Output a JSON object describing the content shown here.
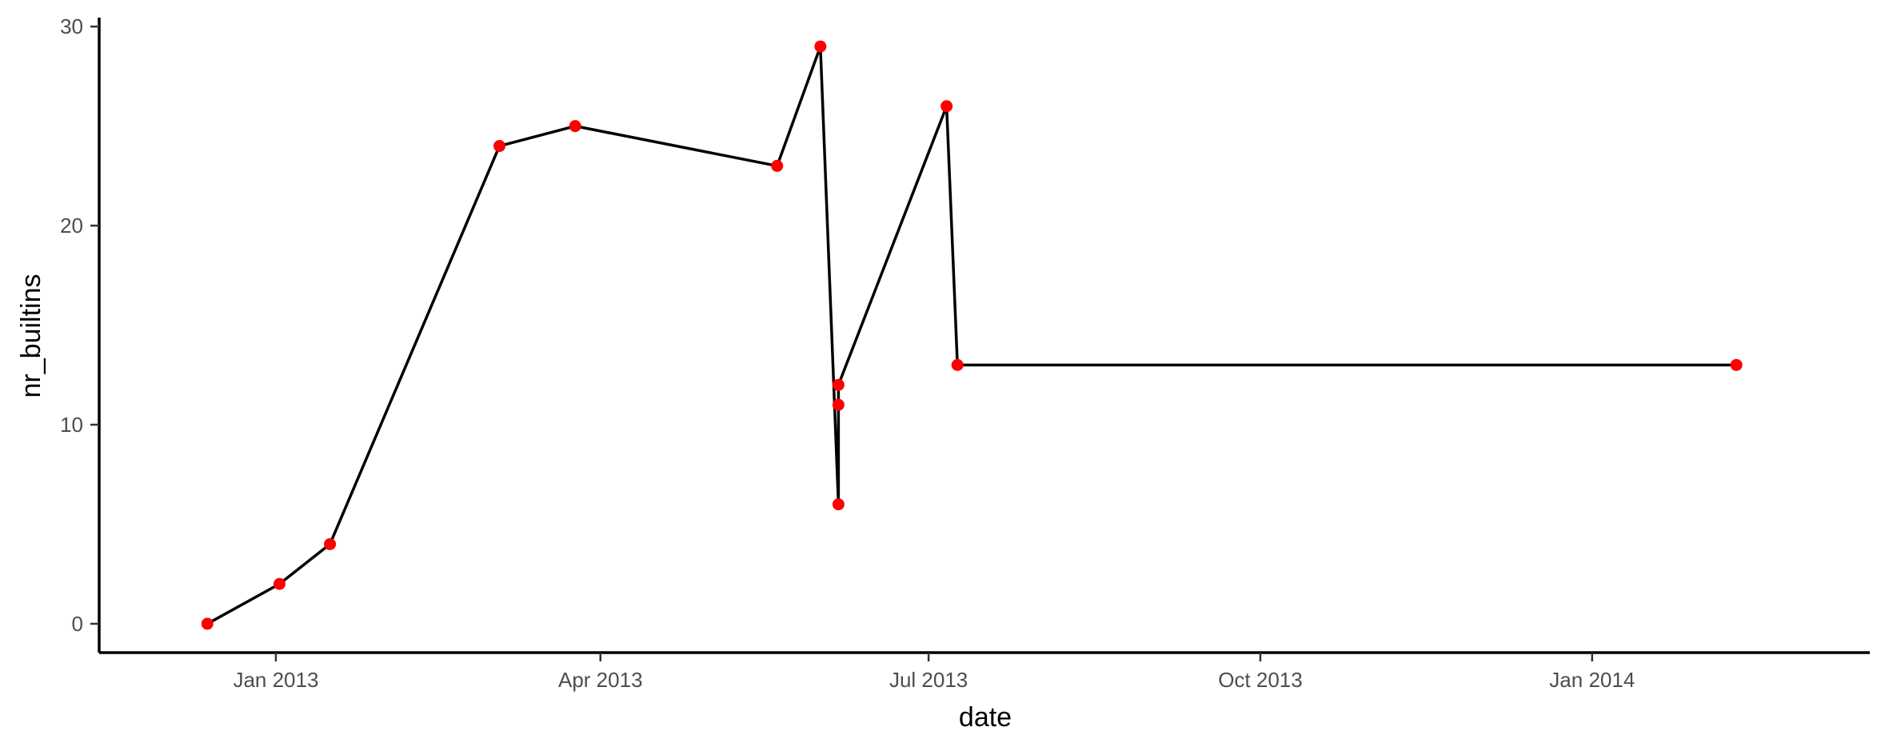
{
  "chart_data": {
    "type": "line",
    "title": "",
    "xlabel": "date",
    "ylabel": "nr_builtins",
    "x_ticks": [
      {
        "date": "2013-01-01",
        "label": "Jan 2013"
      },
      {
        "date": "2013-04-01",
        "label": "Apr 2013"
      },
      {
        "date": "2013-07-01",
        "label": "Jul 2013"
      },
      {
        "date": "2013-10-01",
        "label": "Oct 2013"
      },
      {
        "date": "2014-01-01",
        "label": "Jan 2014"
      }
    ],
    "y_ticks": [
      0,
      10,
      20,
      30
    ],
    "xlim": [
      "2012-11-13",
      "2014-03-19"
    ],
    "ylim": [
      -1.45,
      30.45
    ],
    "grid": false,
    "legend": "none",
    "line_color": "#000000",
    "point_color": "#ff0000",
    "points": [
      {
        "x": "2012-12-13",
        "y": 0
      },
      {
        "x": "2013-01-02",
        "y": 2
      },
      {
        "x": "2013-01-16",
        "y": 4
      },
      {
        "x": "2013-03-04",
        "y": 24
      },
      {
        "x": "2013-03-25",
        "y": 25
      },
      {
        "x": "2013-05-20",
        "y": 23
      },
      {
        "x": "2013-06-01",
        "y": 29
      },
      {
        "x": "2013-06-06",
        "y": 6
      },
      {
        "x": "2013-06-06",
        "y": 11
      },
      {
        "x": "2013-06-06",
        "y": 12
      },
      {
        "x": "2013-07-06",
        "y": 26
      },
      {
        "x": "2013-07-09",
        "y": 13
      },
      {
        "x": "2014-02-10",
        "y": 13
      }
    ]
  }
}
